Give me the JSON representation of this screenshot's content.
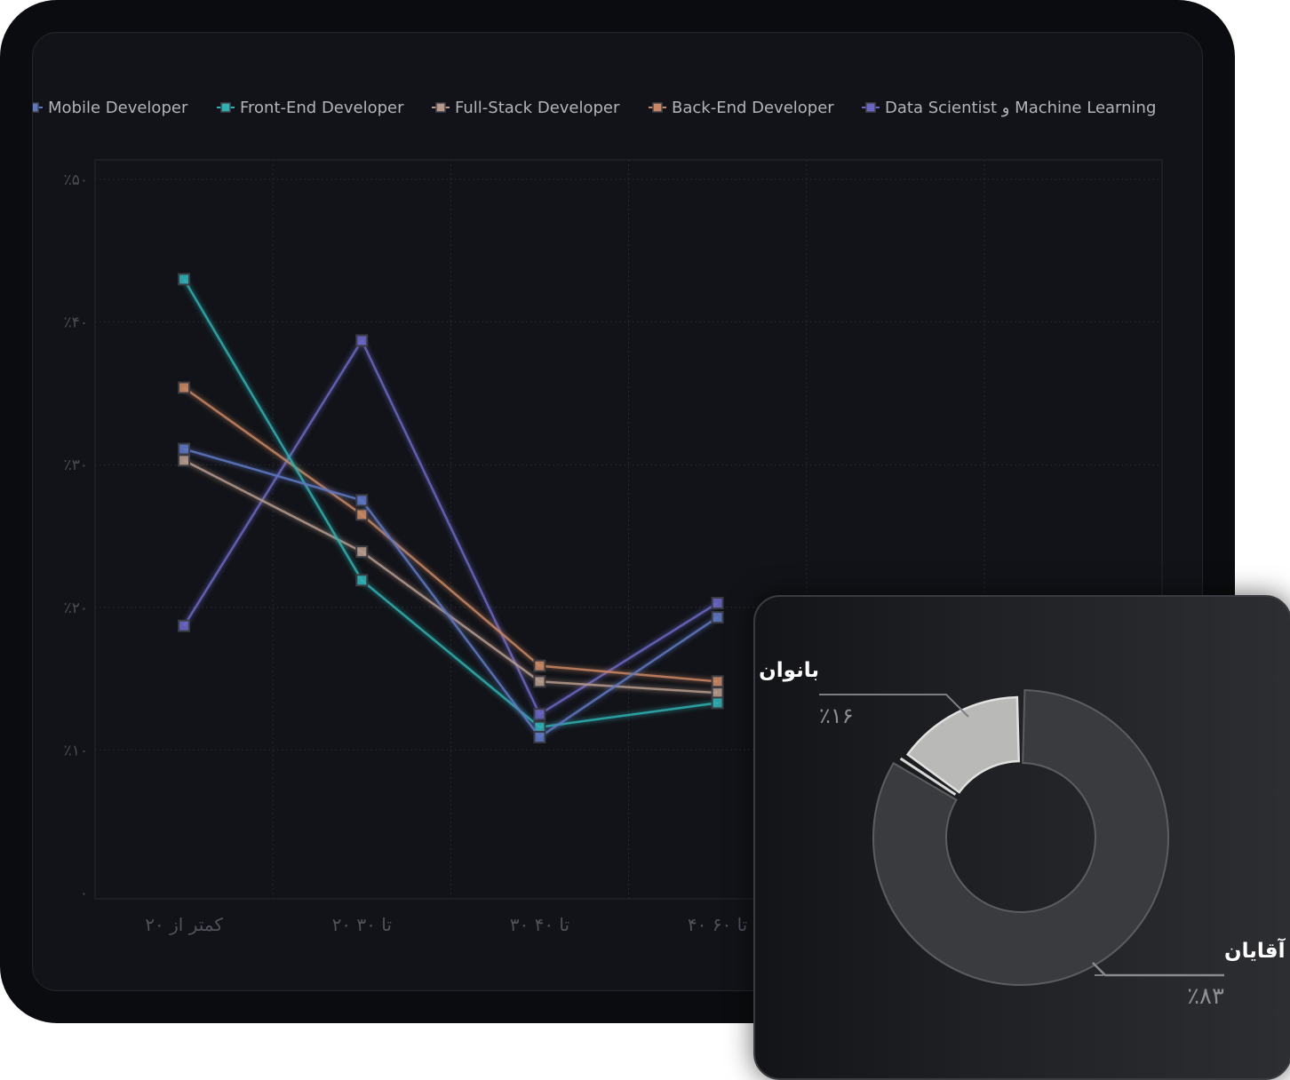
{
  "chart_data": [
    {
      "type": "line",
      "categories": [
        "کمتر از ۲۰",
        "۲۰ تا ۳۰",
        "۳۰ تا ۴۰",
        "۴۰ تا ۶۰"
      ],
      "y_ticks": [
        {
          "value": 0,
          "label": "۰"
        },
        {
          "value": 10,
          "label": "٪۱۰"
        },
        {
          "value": 20,
          "label": "٪۲۰"
        },
        {
          "value": 30,
          "label": "٪۳۰"
        },
        {
          "value": 40,
          "label": "٪۴۰"
        },
        {
          "value": 50,
          "label": "٪۵۰"
        }
      ],
      "ylim": [
        0,
        50
      ],
      "grid": true,
      "legend_position": "top",
      "series": [
        {
          "name": "Data Scientist و Machine Learning",
          "color": "#6a66c4",
          "values": [
            18.7,
            38.7,
            12.5,
            20.3
          ]
        },
        {
          "name": "Back-End Developer",
          "color": "#c98763",
          "values": [
            35.4,
            26.5,
            15.9,
            14.8
          ]
        },
        {
          "name": "Full-Stack Developer",
          "color": "#b59a8c",
          "values": [
            30.3,
            23.9,
            14.8,
            14.0
          ]
        },
        {
          "name": "Front-End Developer",
          "color": "#2fb0b2",
          "values": [
            43.0,
            21.9,
            11.6,
            13.3
          ]
        },
        {
          "name": "Mobile Developer",
          "color": "#5d78c2",
          "values": [
            31.1,
            27.5,
            10.9,
            19.3
          ]
        }
      ]
    },
    {
      "type": "pie",
      "labels": [
        "آقایان",
        "بانوان"
      ],
      "values": [
        83,
        16
      ],
      "value_labels": [
        "٪۸۳",
        "٪۱۶"
      ],
      "colors": [
        "#3a3b3f",
        "#b9bab8"
      ]
    }
  ]
}
